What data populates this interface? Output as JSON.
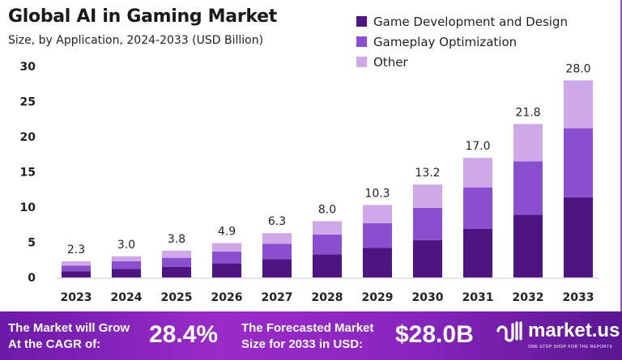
{
  "chart_data": {
    "type": "bar",
    "stacked": true,
    "title": "Global AI in Gaming Market",
    "subtitle": "Size, by Application, 2024-2033 (USD Billion)",
    "categories": [
      "2023",
      "2024",
      "2025",
      "2026",
      "2027",
      "2028",
      "2029",
      "2030",
      "2031",
      "2032",
      "2033"
    ],
    "series": [
      {
        "name": "Game Development and Design",
        "color": "#4e1582",
        "values": [
          0.9,
          1.2,
          1.5,
          2.0,
          2.6,
          3.3,
          4.2,
          5.3,
          6.9,
          8.9,
          11.4
        ]
      },
      {
        "name": "Gameplay Optimization",
        "color": "#8a4fcf",
        "values": [
          0.8,
          1.1,
          1.3,
          1.7,
          2.2,
          2.8,
          3.5,
          4.6,
          5.9,
          7.6,
          9.8
        ]
      },
      {
        "name": "Other",
        "color": "#cfa8ea",
        "values": [
          0.6,
          0.7,
          1.0,
          1.2,
          1.5,
          1.9,
          2.6,
          3.3,
          4.2,
          5.3,
          6.8
        ]
      }
    ],
    "totals": [
      "2.3",
      "3.0",
      "3.8",
      "4.9",
      "6.3",
      "8.0",
      "10.3",
      "13.2",
      "17.0",
      "21.8",
      "28.0"
    ],
    "yticks": [
      "0",
      "5",
      "10",
      "15",
      "20",
      "25",
      "30"
    ],
    "ylim": [
      0,
      30
    ],
    "grid": false,
    "legend_position": "top-right"
  },
  "banner": {
    "cagr_label_1": "The Market will Grow",
    "cagr_label_2": "At the CAGR of:",
    "cagr_value": "28.4%",
    "forecast_label_1": "The Forecasted Market",
    "forecast_label_2": "Size for 2033 in USD:",
    "forecast_value": "$28.0B",
    "logo_text": "market.us",
    "logo_tagline": "ONE STOP SHOP FOR THE REPORTS"
  }
}
